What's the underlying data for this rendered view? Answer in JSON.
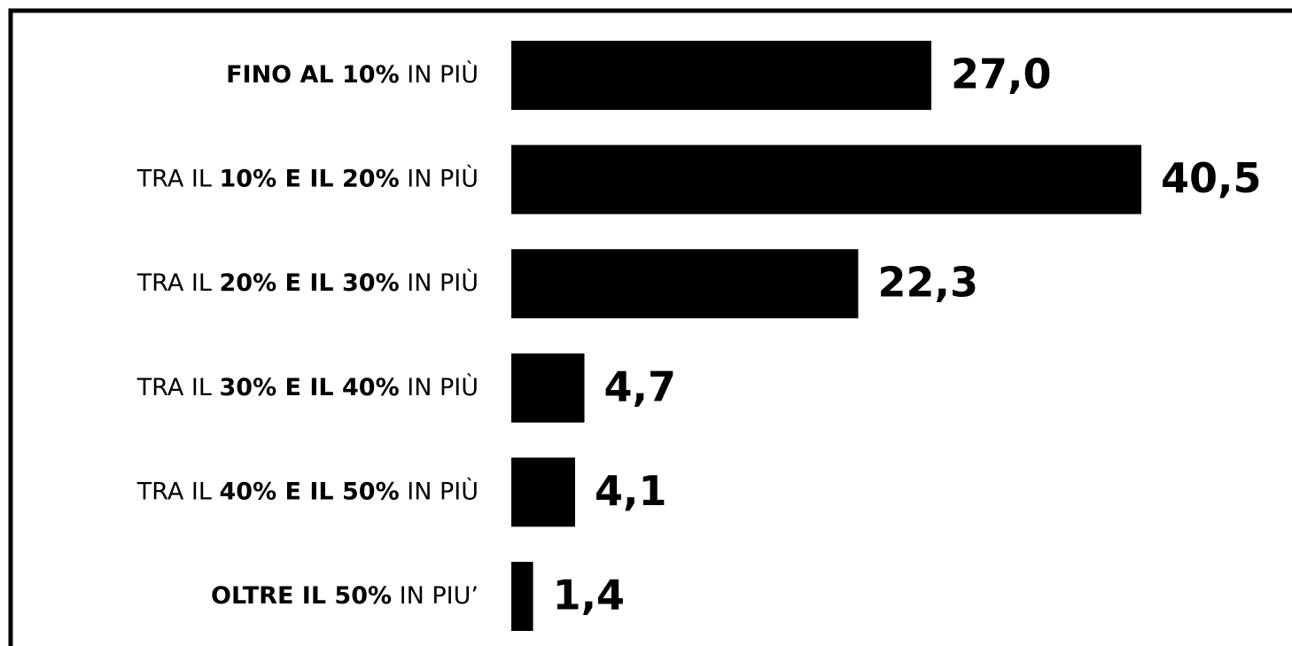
{
  "chart_data": {
    "type": "bar",
    "orientation": "horizontal",
    "categories": [
      [
        {
          "text": "FINO AL 10%",
          "bold": true
        },
        {
          "text": " IN PIÙ",
          "bold": false
        }
      ],
      [
        {
          "text": "TRA IL ",
          "bold": false
        },
        {
          "text": "10% E IL 20%",
          "bold": true
        },
        {
          "text": " IN PIÙ",
          "bold": false
        }
      ],
      [
        {
          "text": "TRA IL ",
          "bold": false
        },
        {
          "text": "20% E IL 30%",
          "bold": true
        },
        {
          "text": " IN PIÙ",
          "bold": false
        }
      ],
      [
        {
          "text": "TRA IL ",
          "bold": false
        },
        {
          "text": "30% E IL 40%",
          "bold": true
        },
        {
          "text": " IN PIÙ",
          "bold": false
        }
      ],
      [
        {
          "text": "TRA IL ",
          "bold": false
        },
        {
          "text": "40% E IL 50%",
          "bold": true
        },
        {
          "text": " IN PIÙ",
          "bold": false
        }
      ],
      [
        {
          "text": "OLTRE IL 50%",
          "bold": true
        },
        {
          "text": " IN PIU’",
          "bold": false
        }
      ]
    ],
    "values": [
      27.0,
      40.5,
      22.3,
      4.7,
      4.1,
      1.4
    ],
    "value_labels": [
      "27,0",
      "40,5",
      "22,3",
      "4,7",
      "4,1",
      "1,4"
    ],
    "color": "#000000",
    "xlim": [
      0,
      45
    ]
  }
}
